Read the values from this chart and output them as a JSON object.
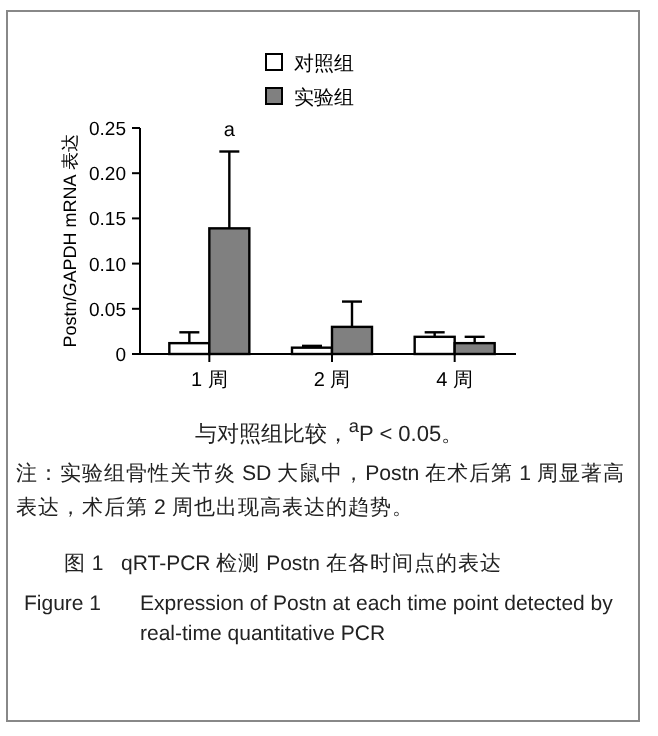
{
  "chart_data": {
    "type": "bar",
    "title": "图 1   qRT-PCR 检测 Postn 在各时间点的表达",
    "subtitle": "Figure 1   Expression of Postn at each time point detected by real-time quantitative PCR",
    "ylabel": "Postn/GAPDH mRNA 表达",
    "categories": [
      "1 周",
      "2 周",
      "4 周"
    ],
    "series": [
      {
        "name": "对照组",
        "color": "#ffffff",
        "values": [
          0.012,
          0.007,
          0.019
        ],
        "errors": [
          [
            0.012,
            0.024
          ],
          [
            0.007,
            0.009
          ],
          [
            0.019,
            0.024
          ]
        ]
      },
      {
        "name": "实验组",
        "color": "#808080",
        "values": [
          0.139,
          0.03,
          0.012
        ],
        "errors": [
          [
            0.139,
            0.224
          ],
          [
            0.03,
            0.058
          ],
          [
            0.012,
            0.019
          ]
        ]
      }
    ],
    "ylim": [
      0,
      0.25
    ],
    "yticks": [
      0,
      0.05,
      {
        "value": 0.1,
        "label": "0.10"
      },
      0.15,
      {
        "value": 0.2,
        "label": "0.20"
      },
      0.25
    ],
    "legend": "top",
    "annotations": [
      "a",
      "与对照组比较，$^{a}$P < 0.05。",
      "注：实验组骨性关节炎 SD 大鼠中，Postn 在术后第 1 周显著高表达，术后第 2 周也出现高表达的趋势。"
    ]
  }
}
